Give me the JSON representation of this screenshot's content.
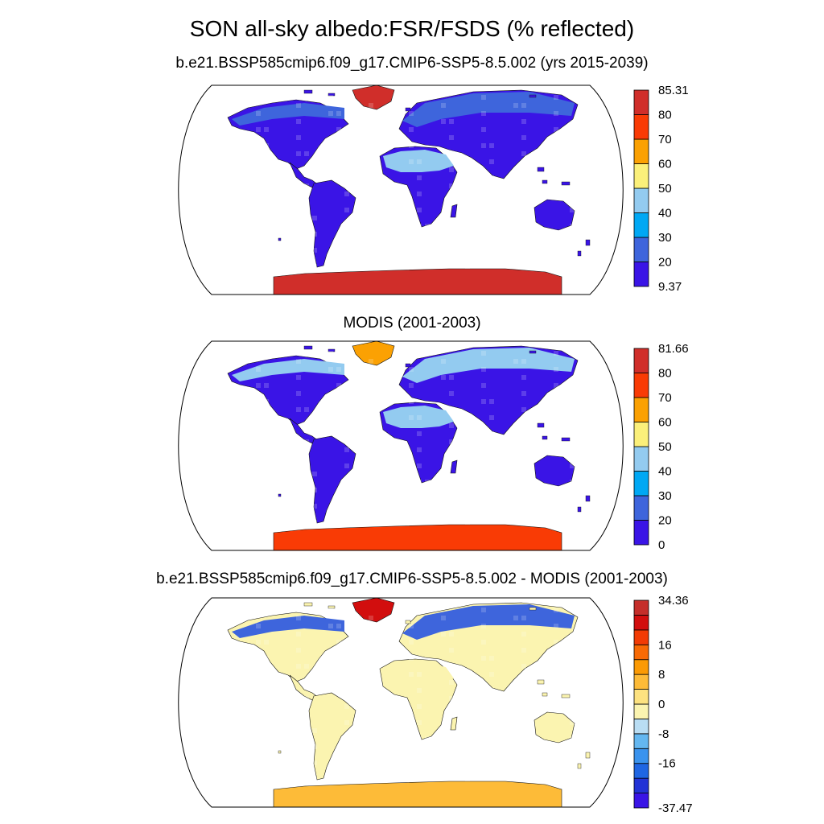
{
  "title": "SON all-sky albedo:FSR/FSDS (% reflected)",
  "panels": [
    {
      "title": "b.e21.BSSP585cmip6.f09_g17.CMIP6-SSP5-8.5.002 (yrs 2015-2039)",
      "colorbar": {
        "colors": [
          "#3a14e6",
          "#3e65dc",
          "#00a8f4",
          "#93cbf0",
          "#fbf07a",
          "#fba103",
          "#f93b05",
          "#d02e2a"
        ],
        "labels": [
          "9.37",
          "20",
          "30",
          "40",
          "50",
          "60",
          "70",
          "80",
          "85.31"
        ]
      },
      "regions": {
        "land_fill": "#3a14e6",
        "desert_fill": "#93cbf0",
        "arctic_fill": "#3e65dc",
        "greenland_fill": "#d02e2a",
        "antarctica_fill": "#d02e2a"
      }
    },
    {
      "title": "MODIS (2001-2003)",
      "colorbar": {
        "colors": [
          "#3a14e6",
          "#3e65dc",
          "#00a8f4",
          "#93cbf0",
          "#fbf07a",
          "#fba103",
          "#f93b05",
          "#d02e2a"
        ],
        "labels": [
          "0",
          "20",
          "30",
          "40",
          "50",
          "60",
          "70",
          "80",
          "81.66"
        ]
      },
      "regions": {
        "land_fill": "#3a14e6",
        "desert_fill": "#93cbf0",
        "arctic_fill": "#93cbf0",
        "greenland_fill": "#fba103",
        "antarctica_fill": "#f93b05"
      }
    },
    {
      "title": "b.e21.BSSP585cmip6.f09_g17.CMIP6-SSP5-8.5.002 - MODIS (2001-2003)",
      "colorbar": {
        "colors": [
          "#3a14e6",
          "#2233d6",
          "#1f66e3",
          "#3a93ee",
          "#64b7f0",
          "#b9ddf3",
          "#fbf4b0",
          "#fde280",
          "#fdbb38",
          "#fb9a04",
          "#f86a04",
          "#f23b04",
          "#d20e0e",
          "#c52e2a"
        ],
        "labels": [
          "-37.47",
          "-16",
          "-8",
          "0",
          "8",
          "16",
          "34.36"
        ],
        "label_bins": [
          0,
          3,
          5,
          7,
          9,
          11,
          14
        ]
      },
      "regions": {
        "land_fill": "#fbf4b0",
        "desert_fill": "#fbf4b0",
        "arctic_fill": "#3e65dc",
        "greenland_fill": "#d20e0e",
        "antarctica_fill": "#fdbb38"
      }
    }
  ]
}
